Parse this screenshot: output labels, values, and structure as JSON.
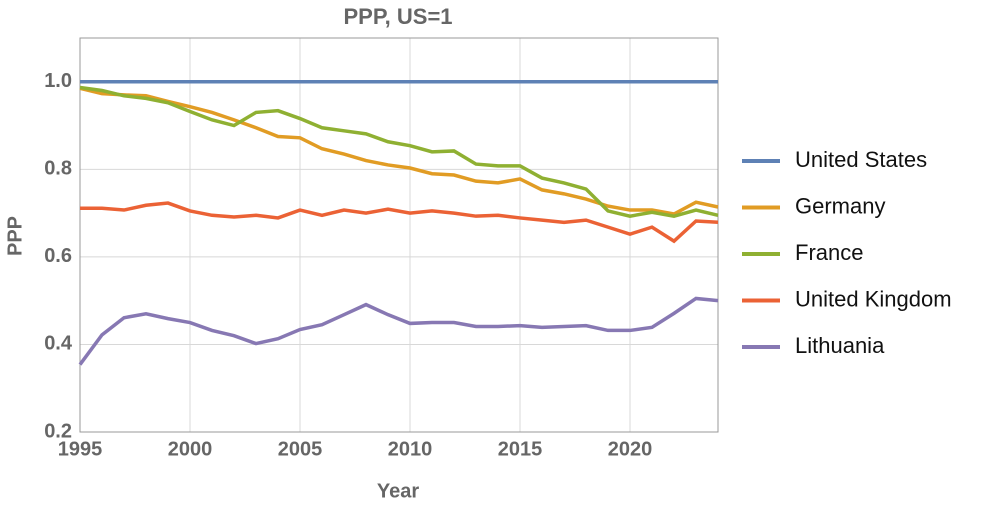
{
  "chart_data": {
    "type": "line",
    "title": "PPP, US=1",
    "x_label": "Year",
    "y_label": "PPP",
    "x": [
      1995,
      1996,
      1997,
      1998,
      1999,
      2000,
      2001,
      2002,
      2003,
      2004,
      2005,
      2006,
      2007,
      2008,
      2009,
      2010,
      2011,
      2012,
      2013,
      2014,
      2015,
      2016,
      2017,
      2018,
      2019,
      2020,
      2021,
      2022,
      2023,
      2024
    ],
    "series": [
      {
        "name": "United States",
        "color": "#5e81b5",
        "values": [
          1,
          1,
          1,
          1,
          1,
          1,
          1,
          1,
          1,
          1,
          1,
          1,
          1,
          1,
          1,
          1,
          1,
          1,
          1,
          1,
          1,
          1,
          1,
          1,
          1,
          1,
          1,
          1,
          1,
          1
        ]
      },
      {
        "name": "Germany",
        "color": "#e19c24",
        "values": [
          0.985,
          0.973,
          0.97,
          0.968,
          0.955,
          0.943,
          0.93,
          0.913,
          0.895,
          0.875,
          0.872,
          0.847,
          0.835,
          0.82,
          0.81,
          0.803,
          0.79,
          0.787,
          0.773,
          0.769,
          0.778,
          0.753,
          0.744,
          0.732,
          0.716,
          0.707,
          0.707,
          0.698,
          0.725,
          0.714
        ]
      },
      {
        "name": "France",
        "color": "#8fb032",
        "values": [
          0.987,
          0.98,
          0.968,
          0.962,
          0.952,
          0.932,
          0.913,
          0.9,
          0.93,
          0.934,
          0.916,
          0.895,
          0.888,
          0.881,
          0.863,
          0.854,
          0.84,
          0.842,
          0.812,
          0.808,
          0.808,
          0.78,
          0.769,
          0.755,
          0.705,
          0.693,
          0.702,
          0.693,
          0.707,
          0.695
        ]
      },
      {
        "name": "United Kingdom",
        "color": "#eb6235",
        "values": [
          0.711,
          0.711,
          0.707,
          0.718,
          0.723,
          0.705,
          0.695,
          0.691,
          0.695,
          0.689,
          0.707,
          0.695,
          0.707,
          0.7,
          0.709,
          0.7,
          0.705,
          0.7,
          0.693,
          0.695,
          0.689,
          0.684,
          0.679,
          0.684,
          0.668,
          0.652,
          0.668,
          0.636,
          0.682,
          0.679
        ]
      },
      {
        "name": "Lithuania",
        "color": "#8778b3",
        "values": [
          0.354,
          0.422,
          0.461,
          0.47,
          0.459,
          0.45,
          0.432,
          0.42,
          0.402,
          0.413,
          0.434,
          0.445,
          0.468,
          0.491,
          0.468,
          0.448,
          0.45,
          0.45,
          0.441,
          0.441,
          0.443,
          0.439,
          0.441,
          0.443,
          0.432,
          0.432,
          0.439,
          0.471,
          0.505,
          0.5
        ]
      }
    ],
    "xlim": [
      1995,
      2024
    ],
    "ylim": [
      0.2,
      1.1
    ],
    "xticks": [
      1995,
      2000,
      2005,
      2010,
      2015,
      2020
    ],
    "yticks": [
      0.2,
      0.4,
      0.6,
      0.8,
      {
        "value": 1,
        "label": "1.0"
      }
    ],
    "grid": true,
    "legend": "right"
  }
}
